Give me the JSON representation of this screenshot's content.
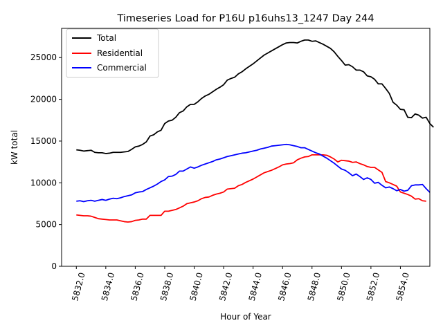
{
  "chart_data": {
    "type": "line",
    "title": "Timeseries Load for P16U p16uhs13_1247  Day 244",
    "xlabel": "Hour of Year",
    "ylabel": "kW total",
    "xlim": [
      5831.0,
      5856.0
    ],
    "ylim": [
      0,
      28500
    ],
    "xticks": [
      5832,
      5834,
      5836,
      5838,
      5840,
      5842,
      5844,
      5846,
      5848,
      5850,
      5852,
      5854
    ],
    "xtick_labels": [
      "5832.0",
      "5834.0",
      "5836.0",
      "5838.0",
      "5840.0",
      "5842.0",
      "5844.0",
      "5846.0",
      "5848.0",
      "5850.0",
      "5852.0",
      "5854.0"
    ],
    "yticks": [
      0,
      5000,
      10000,
      15000,
      20000,
      25000
    ],
    "ytick_labels": [
      "0",
      "5000",
      "10000",
      "15000",
      "20000",
      "25000"
    ],
    "legend_position": "upper-left",
    "x_start": 5832.0,
    "x_step": 0.25,
    "series": [
      {
        "name": "Total",
        "color": "#000000",
        "values": [
          13950,
          13900,
          13800,
          13850,
          13900,
          13650,
          13600,
          13600,
          13500,
          13550,
          13650,
          13650,
          13650,
          13700,
          13750,
          14000,
          14300,
          14400,
          14600,
          14900,
          15600,
          15750,
          16100,
          16300,
          17100,
          17400,
          17500,
          17850,
          18400,
          18600,
          19100,
          19400,
          19400,
          19700,
          20100,
          20400,
          20600,
          20900,
          21200,
          21450,
          21750,
          22300,
          22500,
          22650,
          23050,
          23300,
          23650,
          23950,
          24250,
          24600,
          24950,
          25300,
          25550,
          25800,
          26050,
          26300,
          26550,
          26750,
          26800,
          26800,
          26750,
          26950,
          27100,
          27100,
          26950,
          27000,
          26800,
          26600,
          26350,
          26100,
          25700,
          25150,
          24650,
          24100,
          24150,
          23900,
          23500,
          23500,
          23300,
          22800,
          22700,
          22400,
          21850,
          21850,
          21300,
          20700,
          19650,
          19300,
          18800,
          18750,
          17850,
          17800,
          18250,
          18100,
          17750,
          17850,
          17100,
          16650
        ]
      },
      {
        "name": "Residential",
        "color": "#ff0000",
        "values": [
          6150,
          6100,
          6050,
          6050,
          6000,
          5850,
          5700,
          5650,
          5600,
          5550,
          5550,
          5550,
          5450,
          5350,
          5300,
          5350,
          5500,
          5550,
          5650,
          5650,
          6100,
          6100,
          6100,
          6100,
          6600,
          6600,
          6700,
          6800,
          7000,
          7200,
          7500,
          7600,
          7700,
          7850,
          8100,
          8250,
          8300,
          8500,
          8650,
          8750,
          8900,
          9250,
          9300,
          9350,
          9650,
          9800,
          10050,
          10250,
          10450,
          10700,
          10950,
          11200,
          11350,
          11500,
          11700,
          11900,
          12150,
          12250,
          12300,
          12400,
          12750,
          12950,
          13100,
          13150,
          13350,
          13350,
          13350,
          13350,
          13300,
          13100,
          12850,
          12500,
          12700,
          12650,
          12600,
          12450,
          12500,
          12300,
          12150,
          11950,
          11850,
          11850,
          11550,
          11250,
          10150,
          10000,
          9800,
          9600,
          8900,
          8750,
          8600,
          8400,
          8050,
          8100,
          7850,
          7800
        ]
      },
      {
        "name": "Commercial",
        "color": "#0000ff",
        "values": [
          7800,
          7850,
          7750,
          7850,
          7900,
          7800,
          7900,
          8000,
          7900,
          8050,
          8150,
          8100,
          8200,
          8350,
          8450,
          8550,
          8800,
          8900,
          8950,
          9200,
          9400,
          9600,
          9850,
          10150,
          10350,
          10750,
          10800,
          11000,
          11400,
          11400,
          11650,
          11900,
          11750,
          11900,
          12100,
          12250,
          12400,
          12550,
          12750,
          12850,
          13000,
          13150,
          13250,
          13350,
          13450,
          13550,
          13600,
          13700,
          13800,
          13900,
          14050,
          14150,
          14250,
          14400,
          14450,
          14500,
          14550,
          14600,
          14550,
          14450,
          14350,
          14200,
          14200,
          14000,
          13800,
          13600,
          13450,
          13200,
          12950,
          12650,
          12350,
          12000,
          11650,
          11500,
          11200,
          10850,
          11050,
          10750,
          10400,
          10600,
          10400,
          9950,
          10050,
          9700,
          9400,
          9500,
          9300,
          9050,
          9200,
          9000,
          9100,
          9650,
          9750,
          9750,
          9800,
          9300,
          8850
        ]
      }
    ]
  }
}
